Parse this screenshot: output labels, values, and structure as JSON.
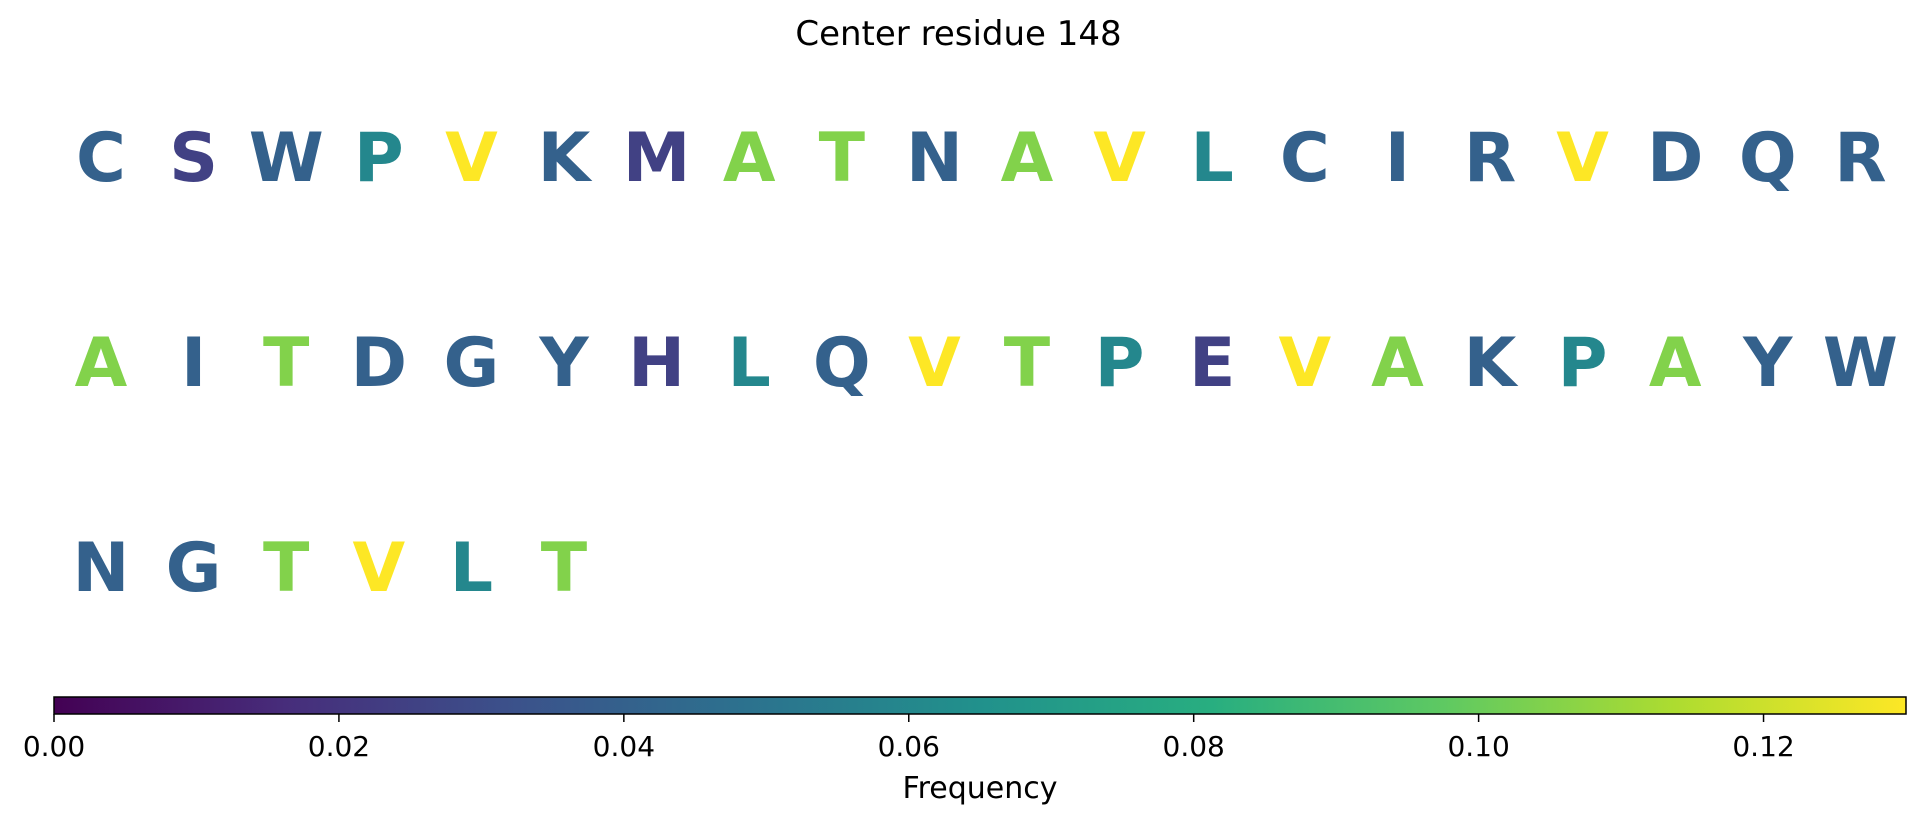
{
  "chart_data": {
    "type": "heatmap",
    "title": "Center residue 148",
    "residues": [
      {
        "letter": "C",
        "freq": 0.04
      },
      {
        "letter": "S",
        "freq": 0.025
      },
      {
        "letter": "W",
        "freq": 0.04
      },
      {
        "letter": "P",
        "freq": 0.06
      },
      {
        "letter": "V",
        "freq": 0.13
      },
      {
        "letter": "K",
        "freq": 0.04
      },
      {
        "letter": "M",
        "freq": 0.025
      },
      {
        "letter": "A",
        "freq": 0.105
      },
      {
        "letter": "T",
        "freq": 0.105
      },
      {
        "letter": "N",
        "freq": 0.04
      },
      {
        "letter": "A",
        "freq": 0.105
      },
      {
        "letter": "V",
        "freq": 0.13
      },
      {
        "letter": "L",
        "freq": 0.06
      },
      {
        "letter": "C",
        "freq": 0.04
      },
      {
        "letter": "I",
        "freq": 0.04
      },
      {
        "letter": "R",
        "freq": 0.04
      },
      {
        "letter": "V",
        "freq": 0.13
      },
      {
        "letter": "D",
        "freq": 0.04
      },
      {
        "letter": "Q",
        "freq": 0.04
      },
      {
        "letter": "R",
        "freq": 0.04
      },
      {
        "letter": "A",
        "freq": 0.105
      },
      {
        "letter": "I",
        "freq": 0.04
      },
      {
        "letter": "T",
        "freq": 0.105
      },
      {
        "letter": "D",
        "freq": 0.04
      },
      {
        "letter": "G",
        "freq": 0.04
      },
      {
        "letter": "Y",
        "freq": 0.04
      },
      {
        "letter": "H",
        "freq": 0.025
      },
      {
        "letter": "L",
        "freq": 0.06
      },
      {
        "letter": "Q",
        "freq": 0.04
      },
      {
        "letter": "V",
        "freq": 0.13
      },
      {
        "letter": "T",
        "freq": 0.105
      },
      {
        "letter": "P",
        "freq": 0.06
      },
      {
        "letter": "E",
        "freq": 0.025
      },
      {
        "letter": "V",
        "freq": 0.13
      },
      {
        "letter": "A",
        "freq": 0.105
      },
      {
        "letter": "K",
        "freq": 0.04
      },
      {
        "letter": "P",
        "freq": 0.06
      },
      {
        "letter": "A",
        "freq": 0.105
      },
      {
        "letter": "Y",
        "freq": 0.04
      },
      {
        "letter": "W",
        "freq": 0.04
      },
      {
        "letter": "N",
        "freq": 0.04
      },
      {
        "letter": "G",
        "freq": 0.04
      },
      {
        "letter": "T",
        "freq": 0.105
      },
      {
        "letter": "V",
        "freq": 0.13
      },
      {
        "letter": "L",
        "freq": 0.06
      },
      {
        "letter": "T",
        "freq": 0.105
      }
    ],
    "letters_per_row": 20,
    "colormap": "viridis",
    "colorbar": {
      "label": "Frequency",
      "range": [
        0,
        0.13
      ],
      "ticks": [
        0.0,
        0.02,
        0.04,
        0.06,
        0.08,
        0.1,
        0.12
      ],
      "tick_labels": [
        "0.00",
        "0.02",
        "0.04",
        "0.06",
        "0.08",
        "0.10",
        "0.12"
      ],
      "orientation": "horizontal"
    }
  }
}
